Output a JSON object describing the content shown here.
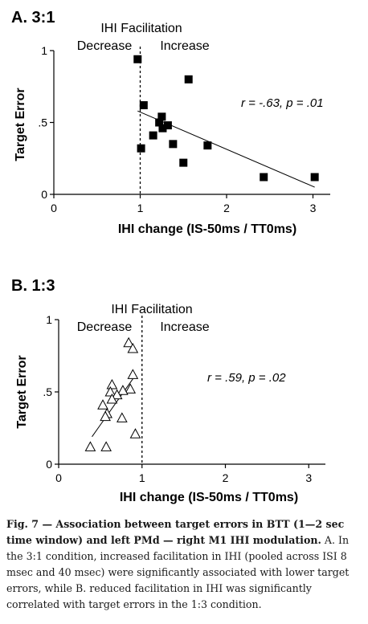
{
  "chart_data": [
    {
      "type": "scatter",
      "panel_label": "A. 3:1",
      "xlabel": "IHI change (IS-50ms / TT0ms)",
      "ylabel": "Target Error",
      "xlim": [
        0,
        3.2
      ],
      "ylim": [
        0,
        1
      ],
      "xticks": [
        "0",
        "1",
        "2",
        "3"
      ],
      "yticks": [
        "0",
        ".5",
        "1"
      ],
      "vline_x": 1,
      "facilitation_title": "IHI Facilitation",
      "decrease_label": "Decrease",
      "increase_label": "Increase",
      "stat_r": "r = -.63, ",
      "stat_p": "p = .01",
      "marker": "filled-square",
      "points": [
        {
          "x": 0.97,
          "y": 0.94
        },
        {
          "x": 1.56,
          "y": 0.8
        },
        {
          "x": 1.04,
          "y": 0.62
        },
        {
          "x": 1.25,
          "y": 0.54
        },
        {
          "x": 1.22,
          "y": 0.5
        },
        {
          "x": 1.32,
          "y": 0.48
        },
        {
          "x": 1.26,
          "y": 0.46
        },
        {
          "x": 1.15,
          "y": 0.41
        },
        {
          "x": 1.38,
          "y": 0.35
        },
        {
          "x": 1.78,
          "y": 0.34
        },
        {
          "x": 1.01,
          "y": 0.32
        },
        {
          "x": 1.5,
          "y": 0.22
        },
        {
          "x": 2.43,
          "y": 0.12
        },
        {
          "x": 3.02,
          "y": 0.12
        }
      ],
      "fit_line": {
        "x1": 0.97,
        "y1": 0.58,
        "x2": 3.02,
        "y2": 0.05
      }
    },
    {
      "type": "scatter",
      "panel_label": "B. 1:3",
      "xlabel": "IHI change (IS-50ms / TT0ms)",
      "ylabel": "Target Error",
      "xlim": [
        0,
        3.2
      ],
      "ylim": [
        0,
        1
      ],
      "xticks": [
        "0",
        "1",
        "2",
        "3"
      ],
      "yticks": [
        "0",
        ".5",
        "1"
      ],
      "vline_x": 1,
      "facilitation_title": "IHI Facilitation",
      "decrease_label": "Decrease",
      "increase_label": "Increase",
      "stat_r": "r = .59, ",
      "stat_p": "p = .02",
      "marker": "open-triangle",
      "points": [
        {
          "x": 0.84,
          "y": 0.84
        },
        {
          "x": 0.89,
          "y": 0.8
        },
        {
          "x": 0.89,
          "y": 0.62
        },
        {
          "x": 0.64,
          "y": 0.55
        },
        {
          "x": 0.86,
          "y": 0.52
        },
        {
          "x": 0.77,
          "y": 0.51
        },
        {
          "x": 0.62,
          "y": 0.5
        },
        {
          "x": 0.7,
          "y": 0.48
        },
        {
          "x": 0.64,
          "y": 0.45
        },
        {
          "x": 0.53,
          "y": 0.41
        },
        {
          "x": 0.58,
          "y": 0.35
        },
        {
          "x": 0.56,
          "y": 0.33
        },
        {
          "x": 0.76,
          "y": 0.32
        },
        {
          "x": 0.92,
          "y": 0.21
        },
        {
          "x": 0.38,
          "y": 0.12
        },
        {
          "x": 0.57,
          "y": 0.12
        }
      ],
      "fit_line": {
        "x1": 0.4,
        "y1": 0.19,
        "x2": 0.89,
        "y2": 0.59
      }
    }
  ],
  "caption": {
    "lead": "Fig. 7 — Association between target errors in BTT (1—2 sec time window) and left PMd — right M1 IHI modulation.",
    "body": " A. In the 3:1 condition, increased facilitation in IHI (pooled across ISI 8 msec and 40 msec) were significantly associated with lower target errors, while B. reduced facilitation in IHI was significantly correlated with target errors in the 1:3 condition."
  }
}
